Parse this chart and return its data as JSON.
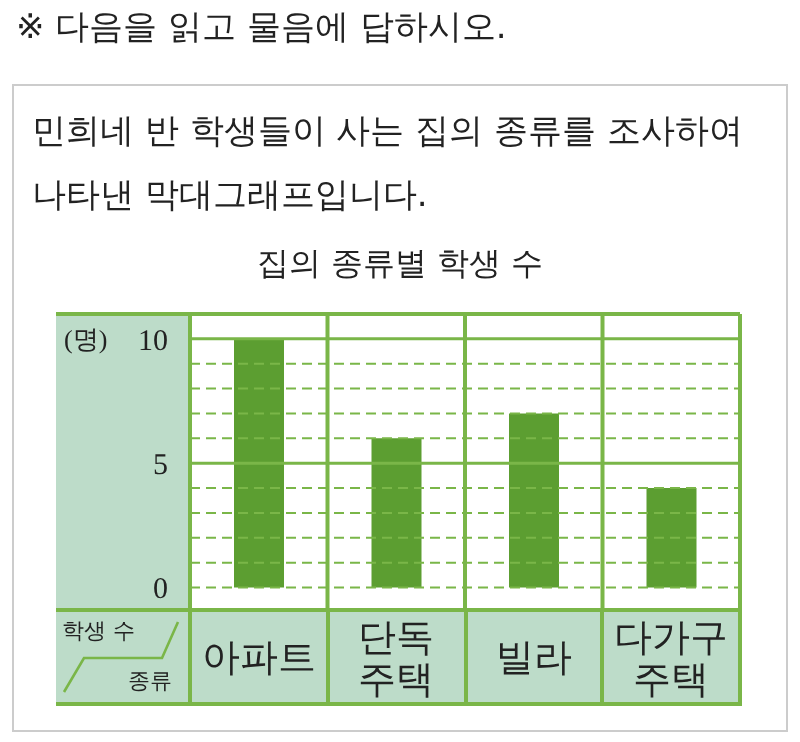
{
  "chart_data": {
    "type": "bar",
    "title": "집의 종류별 학생 수",
    "xlabel": "종류",
    "ylabel": "학생 수",
    "annotations": [
      "※ 다음을 읽고 물음에 답하시오.",
      "민희네 반 학생들이 사는 집의 종류를 조사하여 나타낸 막대그래프입니다.",
      "(명)"
    ],
    "categories": [
      "아파트",
      "단독 주택",
      "빌라",
      "다가구 주택"
    ],
    "values": [
      10,
      6,
      7,
      4
    ],
    "color": "#5c9e31",
    "ylim": [
      -0.9,
      11
    ],
    "yticks": [
      0,
      {
        "value": 1,
        "label": null
      },
      {
        "value": 2,
        "label": null
      },
      {
        "value": 3,
        "label": null
      },
      {
        "value": 4,
        "label": null
      },
      5,
      {
        "value": 6,
        "label": null
      },
      {
        "value": 7,
        "label": null
      },
      {
        "value": 8,
        "label": null
      },
      {
        "value": 9,
        "label": null
      },
      10
    ],
    "grid": true
  }
}
